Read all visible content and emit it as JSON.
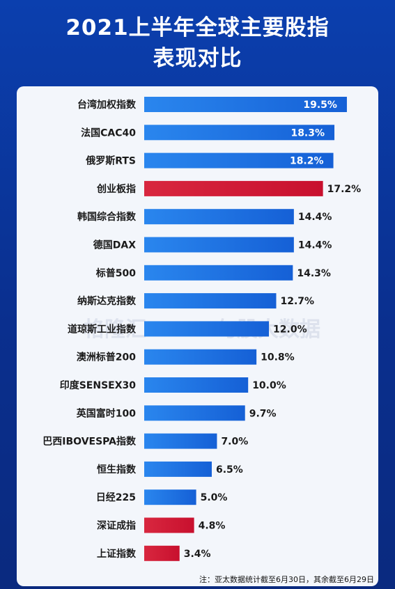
{
  "title_line1": "2021上半年全球主要股指",
  "title_line2": "表现对比",
  "watermark": {
    "left": "格隆汇",
    "right": "勾股大数据"
  },
  "footnote": "注：亚太数据统计截至6月30日，其余截至6月29日",
  "colors": {
    "blue": "#1560d6",
    "red": "#c8102e"
  },
  "chart_data": {
    "type": "bar",
    "orientation": "horizontal",
    "categories": [
      "台湾加权指数",
      "法国CAC40",
      "俄罗斯RTS",
      "创业板指",
      "韩国综合指数",
      "德国DAX",
      "标普500",
      "纳斯达克指数",
      "道琼斯工业指数",
      "澳洲标普200",
      "印度SENSEX30",
      "英国富时100",
      "巴西IBOVESPA指数",
      "恒生指数",
      "日经225",
      "深证成指",
      "上证指数"
    ],
    "values": [
      19.5,
      18.3,
      18.2,
      17.2,
      14.4,
      14.4,
      14.3,
      12.7,
      12.0,
      10.8,
      10.0,
      9.7,
      7.0,
      6.5,
      5.0,
      4.8,
      3.4
    ],
    "labels": [
      "19.5%",
      "18.3%",
      "18.2%",
      "17.2%",
      "14.4%",
      "14.4%",
      "14.3%",
      "12.7%",
      "12.0%",
      "10.8%",
      "10.0%",
      "9.7%",
      "7.0%",
      "6.5%",
      "5.0%",
      "4.8%",
      "3.4%"
    ],
    "highlight": [
      false,
      false,
      false,
      true,
      false,
      false,
      false,
      false,
      false,
      false,
      false,
      false,
      false,
      false,
      false,
      true,
      true
    ],
    "xlim": [
      0,
      20
    ]
  }
}
